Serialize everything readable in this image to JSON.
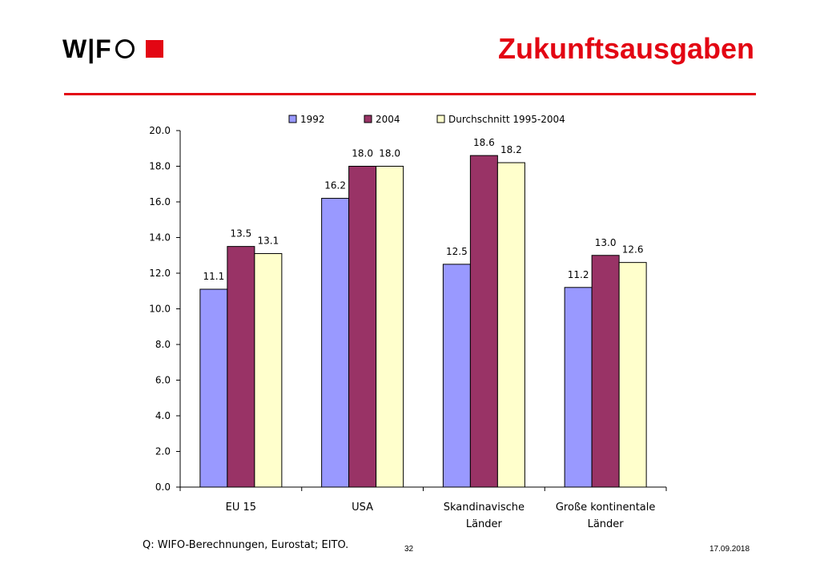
{
  "header": {
    "logo_text": "W|F",
    "title": "Zukunftsausgaben"
  },
  "colors": {
    "accent": "#e30613",
    "series": [
      "#9999ff",
      "#993366",
      "#ffffcc"
    ]
  },
  "chart_data": {
    "type": "bar",
    "title": "",
    "xlabel": "",
    "ylabel": "",
    "categories": [
      [
        "EU 15"
      ],
      [
        "USA"
      ],
      [
        "Skandinavische",
        "Länder"
      ],
      [
        "Große kontinentale",
        "Länder"
      ]
    ],
    "series": [
      {
        "name": "1992",
        "values": [
          11.1,
          16.2,
          12.5,
          11.2
        ],
        "labels": [
          "11.1",
          "16.2",
          "12.5",
          "11.2"
        ]
      },
      {
        "name": "2004",
        "values": [
          13.5,
          18.0,
          18.6,
          13.0
        ],
        "labels": [
          "13.5",
          "18.0",
          "18.6",
          "13.0"
        ]
      },
      {
        "name": "Durchschnitt 1995-2004",
        "values": [
          13.1,
          18.0,
          18.2,
          12.6
        ],
        "labels": [
          "13.1",
          "18.0",
          "18.2",
          "12.6"
        ]
      }
    ],
    "ylim": [
      0,
      20
    ],
    "yticks": [
      "0.0",
      "2.0",
      "4.0",
      "6.0",
      "8.0",
      "10.0",
      "12.0",
      "14.0",
      "16.0",
      "18.0",
      "20.0"
    ],
    "grid": false,
    "legend": "top"
  },
  "footer": {
    "source": "Q: WIFO-Berechnungen, Eurostat; EITO.",
    "page_number": "32",
    "date": "17.09.2018"
  }
}
